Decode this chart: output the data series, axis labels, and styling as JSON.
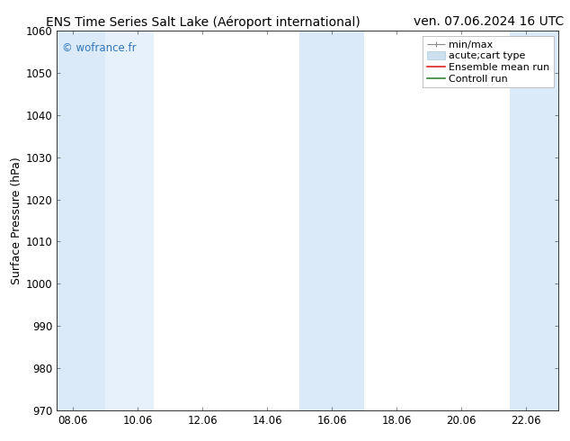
{
  "title_left": "ENS Time Series Salt Lake (Aéroport international)",
  "title_right": "ven. 07.06.2024 16 UTC",
  "ylabel": "Surface Pressure (hPa)",
  "ylim": [
    970,
    1060
  ],
  "yticks": [
    970,
    980,
    990,
    1000,
    1010,
    1020,
    1030,
    1040,
    1050,
    1060
  ],
  "xtick_labels": [
    "08.06",
    "10.06",
    "12.06",
    "14.06",
    "16.06",
    "18.06",
    "20.06",
    "22.06"
  ],
  "xlim_days": [
    7.5,
    23.0
  ],
  "xtick_positions_days": [
    8,
    10,
    12,
    14,
    16,
    18,
    20,
    22
  ],
  "background_color": "#ffffff",
  "plot_bg_color": "#ffffff",
  "watermark": "© wofrance.fr",
  "watermark_color": "#3377bb",
  "shaded_bands": [
    {
      "x_start": 7.5,
      "x_end": 9.0,
      "color": "#daeaf8"
    },
    {
      "x_start": 9.0,
      "x_end": 10.5,
      "color": "#e6f1fb"
    },
    {
      "x_start": 15.0,
      "x_end": 17.0,
      "color": "#daeaf8"
    },
    {
      "x_start": 21.5,
      "x_end": 23.0,
      "color": "#daeaf8"
    }
  ],
  "title_fontsize": 10,
  "tick_fontsize": 8.5,
  "ylabel_fontsize": 9,
  "legend_fontsize": 8
}
